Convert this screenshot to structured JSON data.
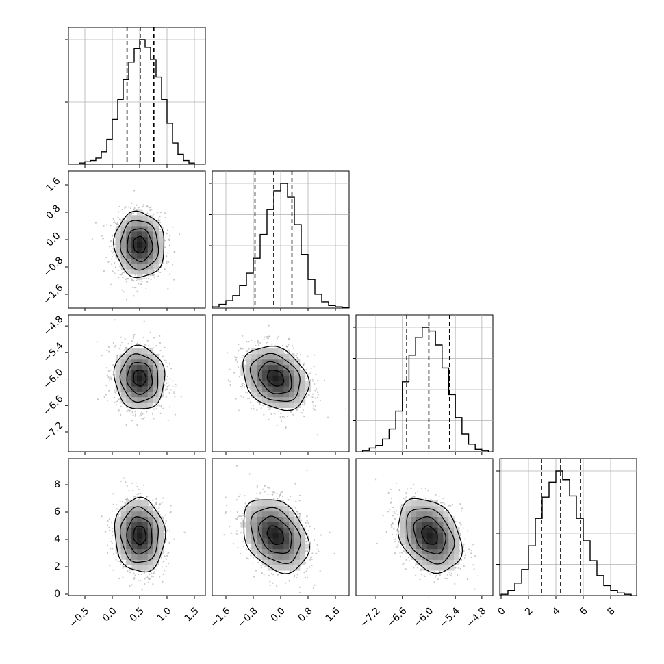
{
  "chart_data": {
    "type": "corner",
    "parameters": 4,
    "axes": {
      "p1": {
        "range": [
          -0.8,
          1.7
        ],
        "ticks": [
          -0.5,
          0.0,
          0.5,
          1.0,
          1.5
        ],
        "tick_labels": [
          "−0.5",
          "0.0",
          "0.5",
          "1.0",
          "1.5"
        ]
      },
      "p2": {
        "range": [
          -2.0,
          2.0
        ],
        "ticks": [
          -1.6,
          -0.8,
          0.0,
          0.8,
          1.6
        ],
        "tick_labels": [
          "−1.6",
          "−0.8",
          "0.0",
          "0.8",
          "1.6"
        ]
      },
      "p3": {
        "range": [
          -7.65,
          -4.55
        ],
        "ticks": [
          -7.2,
          -6.6,
          -6.0,
          -5.4,
          -4.8
        ],
        "tick_labels": [
          "−7.2",
          "−6.6",
          "−6.0",
          "−5.4",
          "−4.8"
        ]
      },
      "p4": {
        "range": [
          -0.1,
          9.9
        ],
        "ticks": [
          0,
          2,
          4,
          6,
          8
        ],
        "tick_labels": [
          "0",
          "2",
          "4",
          "6",
          "8"
        ]
      }
    },
    "marginals": [
      {
        "param": "p1",
        "bins": [
          -0.6,
          -0.5,
          -0.4,
          -0.3,
          -0.2,
          -0.1,
          0.0,
          0.1,
          0.2,
          0.3,
          0.4,
          0.5,
          0.6,
          0.7,
          0.8,
          0.9,
          1.0,
          1.1,
          1.2,
          1.3,
          1.4,
          1.5
        ],
        "counts": [
          0.01,
          0.02,
          0.03,
          0.05,
          0.1,
          0.2,
          0.36,
          0.52,
          0.68,
          0.82,
          0.93,
          1.0,
          0.94,
          0.84,
          0.7,
          0.52,
          0.33,
          0.17,
          0.08,
          0.03,
          0.01
        ],
        "quantiles": [
          0.27,
          0.51,
          0.76
        ]
      },
      {
        "param": "p2",
        "bins": [
          -2.0,
          -1.8,
          -1.6,
          -1.4,
          -1.2,
          -1.0,
          -0.8,
          -0.6,
          -0.4,
          -0.2,
          0.0,
          0.2,
          0.4,
          0.6,
          0.8,
          1.0,
          1.2,
          1.4,
          1.6,
          1.8,
          2.0
        ],
        "counts": [
          0.01,
          0.03,
          0.06,
          0.1,
          0.18,
          0.28,
          0.4,
          0.59,
          0.79,
          0.94,
          1.0,
          0.89,
          0.67,
          0.43,
          0.23,
          0.11,
          0.05,
          0.02,
          0.01,
          0.005
        ],
        "quantiles": [
          -0.75,
          -0.2,
          0.33
        ]
      },
      {
        "param": "p3",
        "bins": [
          -7.5,
          -7.35,
          -7.2,
          -7.05,
          -6.9,
          -6.75,
          -6.6,
          -6.45,
          -6.3,
          -6.15,
          -6.0,
          -5.85,
          -5.7,
          -5.55,
          -5.4,
          -5.25,
          -5.1,
          -4.95,
          -4.8,
          -4.65
        ],
        "counts": [
          0.01,
          0.03,
          0.05,
          0.1,
          0.18,
          0.32,
          0.55,
          0.76,
          0.9,
          0.98,
          0.95,
          0.84,
          0.66,
          0.45,
          0.27,
          0.14,
          0.06,
          0.02,
          0.01
        ],
        "quantiles": [
          -6.5,
          -6.0,
          -5.53
        ]
      },
      {
        "param": "p4",
        "bins": [
          0.0,
          0.5,
          1.0,
          1.5,
          2.0,
          2.5,
          3.0,
          3.5,
          4.0,
          4.5,
          5.0,
          5.5,
          6.0,
          6.5,
          7.0,
          7.5,
          8.0,
          8.5,
          9.0,
          9.5
        ],
        "counts": [
          0.01,
          0.04,
          0.1,
          0.21,
          0.4,
          0.62,
          0.79,
          0.91,
          1.0,
          0.93,
          0.8,
          0.62,
          0.44,
          0.28,
          0.16,
          0.08,
          0.04,
          0.02,
          0.01
        ],
        "quantiles": [
          2.95,
          4.35,
          5.8
        ]
      }
    ],
    "correlations": [
      {
        "x": "p1",
        "y": "p2",
        "mean_x": 0.5,
        "mean_y": -0.15,
        "sigma_x": 0.23,
        "sigma_y": 0.48,
        "rho": -0.05
      },
      {
        "x": "p1",
        "y": "p3",
        "mean_x": 0.5,
        "mean_y": -5.98,
        "sigma_x": 0.23,
        "sigma_y": 0.36,
        "rho": -0.05
      },
      {
        "x": "p2",
        "y": "p3",
        "mean_x": -0.15,
        "mean_y": -5.98,
        "sigma_x": 0.48,
        "sigma_y": 0.36,
        "rho": -0.25
      },
      {
        "x": "p1",
        "y": "p4",
        "mean_x": 0.5,
        "mean_y": 4.3,
        "sigma_x": 0.23,
        "sigma_y": 1.35,
        "rho": -0.05
      },
      {
        "x": "p2",
        "y": "p4",
        "mean_x": -0.15,
        "mean_y": 4.3,
        "sigma_x": 0.48,
        "sigma_y": 1.35,
        "rho": -0.3
      },
      {
        "x": "p3",
        "y": "p4",
        "mean_x": -5.98,
        "mean_y": 4.3,
        "sigma_x": 0.36,
        "sigma_y": 1.35,
        "rho": -0.3
      }
    ],
    "contour_levels_sigma": [
      0.5,
      1.0,
      1.5,
      2.0
    ],
    "grid": true,
    "colors": {
      "line": "#000000",
      "grid": "#b0b0b0",
      "points": "#9a9a9a"
    }
  }
}
